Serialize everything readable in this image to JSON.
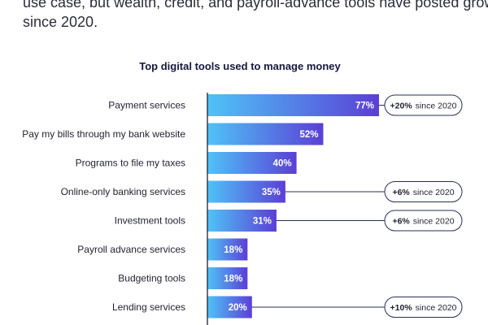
{
  "intro": {
    "line1": "use case, but wealth, credit, and payroll-advance tools have posted growth",
    "line2": "since 2020."
  },
  "colors": {
    "bar_light": "#4fc3f7",
    "bar_dark": "#5b3fd6",
    "axis": "#1f2130",
    "callout_border": "#2a2f55"
  },
  "chart_data": {
    "type": "bar",
    "orientation": "horizontal",
    "title": "Top digital tools used to manage money",
    "unit": "%",
    "xlim": [
      0,
      100
    ],
    "grid": false,
    "categories": [
      "Payment services",
      "Pay my bills through my bank website",
      "Programs to file my taxes",
      "Online-only banking services",
      "Investment tools",
      "Payroll advance services",
      "Budgeting tools",
      "Lending services"
    ],
    "values": [
      77,
      52,
      40,
      35,
      31,
      18,
      18,
      20
    ],
    "value_labels": [
      "77%",
      "52%",
      "40%",
      "35%",
      "31%",
      "18%",
      "18%",
      "20%"
    ],
    "annotations": [
      {
        "category_index": 0,
        "change": "+20%",
        "suffix": "since 2020"
      },
      {
        "category_index": 3,
        "change": "+6%",
        "suffix": "since 2020"
      },
      {
        "category_index": 4,
        "change": "+6%",
        "suffix": "since 2020"
      },
      {
        "category_index": 7,
        "change": "+10%",
        "suffix": "since 2020"
      }
    ]
  }
}
